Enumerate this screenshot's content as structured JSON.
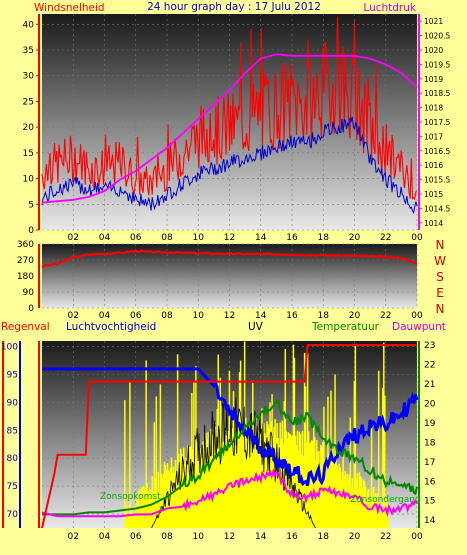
{
  "header": {
    "left": "Windsnelheid",
    "center": "24 hour graph day : 17 Julu 2012",
    "right": "Luchtdruk"
  },
  "panel2": {
    "compass": [
      "N",
      "W",
      "S",
      "E",
      "N"
    ]
  },
  "panel3": {
    "labels": {
      "rain": "Regenval",
      "hum": "Luchtvochtigheid",
      "uv": "UV",
      "temp": "Temperatuur",
      "dew": "Dauwpunt",
      "sunrise": "Zonsopkomst",
      "sunset": "Zonsondergang"
    }
  },
  "colors": {
    "bg": "#ffff99",
    "wind": "#ff0000",
    "gust_line": "#0000cc",
    "pressure": "#ff00ff",
    "humidity": "#0000ff",
    "temp": "#008800",
    "dew": "#ff00ff",
    "uv": "#ffff00",
    "rain": "#ff0000",
    "solar": "#000000",
    "axis_wind": "#ff0000",
    "axis_press": "#ff00ff",
    "axis_rain": "#ff0000",
    "axis_hum": "#0000cc",
    "axis_temp": "#008800"
  },
  "chart_data": [
    {
      "type": "line",
      "x_ticks": [
        "02",
        "04",
        "06",
        "08",
        "10",
        "12",
        "14",
        "16",
        "18",
        "20",
        "22",
        "00"
      ],
      "y_left": {
        "ticks": [
          0,
          5,
          10,
          15,
          20,
          25,
          30,
          35,
          40
        ],
        "lim": [
          0,
          42
        ]
      },
      "y_right": {
        "ticks": [
          "1014",
          "1014.5",
          "1015",
          "1015.5",
          "1016",
          "1016.5",
          "1017",
          "1017.5",
          "1018",
          "1018.5",
          "1019",
          "1019.5",
          "1020",
          "1020.5",
          "1021"
        ],
        "lim": [
          1013.75,
          1021.25
        ]
      },
      "series": [
        {
          "x": [
            0,
            1,
            2,
            3,
            4,
            5,
            6,
            7,
            8,
            9,
            10,
            11,
            12,
            13,
            14,
            15,
            16,
            17,
            18,
            19,
            20,
            21,
            22,
            23,
            24
          ],
          "values": [
            11,
            13,
            14,
            12,
            12,
            13,
            10,
            9,
            12,
            15,
            18,
            19,
            20,
            21,
            23,
            24,
            25,
            24,
            27,
            29,
            26,
            19,
            15,
            12,
            7
          ]
        },
        {
          "x": [
            0,
            1,
            2,
            3,
            4,
            5,
            6,
            7,
            8,
            9,
            10,
            11,
            12,
            13,
            14,
            15,
            16,
            17,
            18,
            19,
            20,
            21,
            22,
            23,
            24
          ],
          "values": [
            6,
            8,
            9,
            8,
            8,
            8,
            6,
            5,
            7,
            9,
            11,
            12,
            13,
            14,
            15,
            16,
            17,
            17,
            19,
            20,
            21,
            14,
            10,
            7,
            4
          ]
        },
        {
          "x": [
            0,
            1,
            2,
            3,
            4,
            5,
            6,
            7,
            8,
            9,
            10,
            11,
            12,
            13,
            14,
            15,
            16,
            17,
            18,
            19,
            20,
            21,
            22,
            23,
            24
          ],
          "values": [
            1014.7,
            1014.75,
            1014.8,
            1014.9,
            1015.1,
            1015.5,
            1015.8,
            1016.2,
            1016.6,
            1017.1,
            1017.6,
            1018.1,
            1018.6,
            1019.2,
            1019.7,
            1019.85,
            1019.8,
            1019.8,
            1019.8,
            1019.8,
            1019.8,
            1019.7,
            1019.5,
            1019.2,
            1018.7
          ]
        }
      ]
    },
    {
      "type": "line",
      "x_ticks": [
        "02",
        "04",
        "06",
        "08",
        "10",
        "12",
        "14",
        "16",
        "18",
        "20",
        "22",
        "00"
      ],
      "y_left": {
        "ticks": [
          0,
          90,
          180,
          270,
          360
        ],
        "lim": [
          0,
          360
        ]
      },
      "series": [
        {
          "x": [
            0,
            1,
            2,
            3,
            4,
            5,
            6,
            7,
            8,
            9,
            10,
            11,
            12,
            13,
            14,
            15,
            16,
            17,
            18,
            19,
            20,
            21,
            22,
            23,
            24
          ],
          "values": [
            235,
            250,
            285,
            300,
            305,
            310,
            320,
            315,
            312,
            310,
            308,
            306,
            305,
            304,
            303,
            302,
            300,
            298,
            296,
            295,
            293,
            290,
            288,
            282,
            250
          ]
        }
      ]
    },
    {
      "type": "line",
      "x_ticks": [
        "02",
        "04",
        "06",
        "08",
        "10",
        "12",
        "14",
        "16",
        "18",
        "20",
        "22",
        "00"
      ],
      "y_left": {
        "ticks": [
          70,
          75,
          80,
          85,
          90,
          95,
          100
        ],
        "lim": [
          67.5,
          101
        ]
      },
      "y_right": {
        "ticks": [
          14,
          15,
          16,
          17,
          18,
          19,
          20,
          21,
          22,
          23
        ],
        "lim": [
          13.6,
          23.2
        ]
      },
      "series": [
        {
          "x": [
            0,
            1,
            2,
            3,
            4,
            5,
            6,
            7,
            8,
            9,
            10,
            11,
            12,
            13,
            14,
            15,
            16,
            17,
            18,
            19,
            20,
            21,
            22,
            23,
            24
          ],
          "values": [
            96,
            96,
            96,
            96,
            96,
            96,
            96,
            96,
            96,
            96,
            96,
            93,
            88,
            85,
            82,
            80,
            78,
            76,
            77,
            82,
            84,
            86,
            86,
            88,
            91
          ]
        },
        {
          "x": [
            0,
            1,
            2,
            3,
            4,
            5,
            6,
            7,
            8,
            9,
            10,
            11,
            12,
            13,
            14,
            15,
            16,
            17,
            18,
            19,
            20,
            21,
            22,
            23,
            24
          ],
          "values": [
            14.3,
            14.3,
            14.3,
            14.4,
            14.4,
            14.5,
            14.6,
            14.8,
            15.2,
            15.8,
            16.3,
            17.0,
            18.0,
            18.8,
            19.5,
            20.0,
            19.0,
            19.3,
            18.2,
            17.6,
            17.2,
            16.6,
            16.0,
            15.7,
            15.6
          ]
        },
        {
          "x": [
            0,
            1,
            2,
            3,
            4,
            5,
            6,
            7,
            8,
            9,
            10,
            11,
            12,
            13,
            14,
            15,
            16,
            17,
            18,
            19,
            20,
            21,
            22,
            23,
            24
          ],
          "values": [
            14.4,
            14.2,
            14.2,
            14.2,
            14.2,
            14.2,
            14.3,
            14.3,
            14.6,
            14.7,
            15.0,
            15.3,
            15.7,
            16.0,
            16.2,
            16.4,
            15.3,
            15.2,
            15.5,
            15.4,
            15.2,
            14.7,
            14.5,
            14.6,
            14.8
          ]
        },
        {
          "x": [
            0,
            0.8,
            1.0,
            2.8,
            3.0,
            16.8,
            17.0,
            24
          ],
          "values": [
            0,
            0.3,
            0.4,
            0.4,
            0.8,
            0.8,
            1.0,
            1.0
          ]
        }
      ]
    }
  ]
}
